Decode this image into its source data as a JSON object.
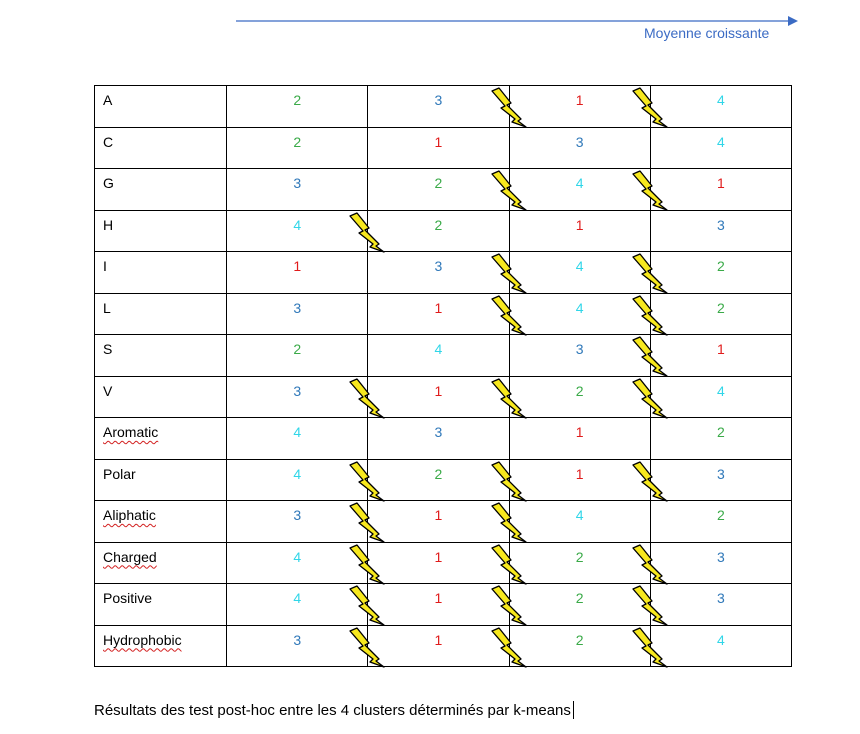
{
  "header": {
    "arrow_label": "Moyenne croissante",
    "arrow_color": "#3b6bc4"
  },
  "colors": {
    "1": "#e01b1b",
    "2": "#3aaa48",
    "3": "#2f78b9",
    "4": "#30d6e8",
    "bolt_fill": "#f7e81e",
    "bolt_stroke": "#000000"
  },
  "table": {
    "rows": [
      {
        "label": "A",
        "squiggle": false,
        "values": [
          "2",
          "3",
          "1",
          "4"
        ],
        "bolts": [
          false,
          true,
          true
        ]
      },
      {
        "label": "C",
        "squiggle": false,
        "values": [
          "2",
          "1",
          "3",
          "4"
        ],
        "bolts": [
          false,
          false,
          false
        ]
      },
      {
        "label": "G",
        "squiggle": false,
        "values": [
          "3",
          "2",
          "4",
          "1"
        ],
        "bolts": [
          false,
          true,
          true
        ]
      },
      {
        "label": "H",
        "squiggle": false,
        "values": [
          "4",
          "2",
          "1",
          "3"
        ],
        "bolts": [
          true,
          false,
          false
        ]
      },
      {
        "label": "I",
        "squiggle": false,
        "values": [
          "1",
          "3",
          "4",
          "2"
        ],
        "bolts": [
          false,
          true,
          true
        ]
      },
      {
        "label": "L",
        "squiggle": false,
        "values": [
          "3",
          "1",
          "4",
          "2"
        ],
        "bolts": [
          false,
          true,
          true
        ]
      },
      {
        "label": "S",
        "squiggle": false,
        "values": [
          "2",
          "4",
          "3",
          "1"
        ],
        "bolts": [
          false,
          false,
          true
        ]
      },
      {
        "label": "V",
        "squiggle": false,
        "values": [
          "3",
          "1",
          "2",
          "4"
        ],
        "bolts": [
          true,
          true,
          true
        ]
      },
      {
        "label": "Aromatic",
        "squiggle": true,
        "values": [
          "4",
          "3",
          "1",
          "2"
        ],
        "bolts": [
          false,
          false,
          false
        ]
      },
      {
        "label": "Polar",
        "squiggle": false,
        "values": [
          "4",
          "2",
          "1",
          "3"
        ],
        "bolts": [
          true,
          true,
          true
        ]
      },
      {
        "label": "Aliphatic",
        "squiggle": true,
        "values": [
          "3",
          "1",
          "4",
          "2"
        ],
        "bolts": [
          true,
          true,
          false
        ]
      },
      {
        "label": "Charged",
        "squiggle": true,
        "values": [
          "4",
          "1",
          "2",
          "3"
        ],
        "bolts": [
          true,
          true,
          true
        ]
      },
      {
        "label": "Positive",
        "squiggle": false,
        "values": [
          "4",
          "1",
          "2",
          "3"
        ],
        "bolts": [
          true,
          true,
          true
        ]
      },
      {
        "label": "Hydrophobic",
        "squiggle": true,
        "values": [
          "3",
          "1",
          "2",
          "4"
        ],
        "bolts": [
          true,
          true,
          true
        ]
      }
    ]
  },
  "caption": {
    "text": "Résultats des test post-hoc entre les 4 clusters déterminés par k-means"
  },
  "icons": {
    "bolt": "lightning-bolt-icon"
  }
}
